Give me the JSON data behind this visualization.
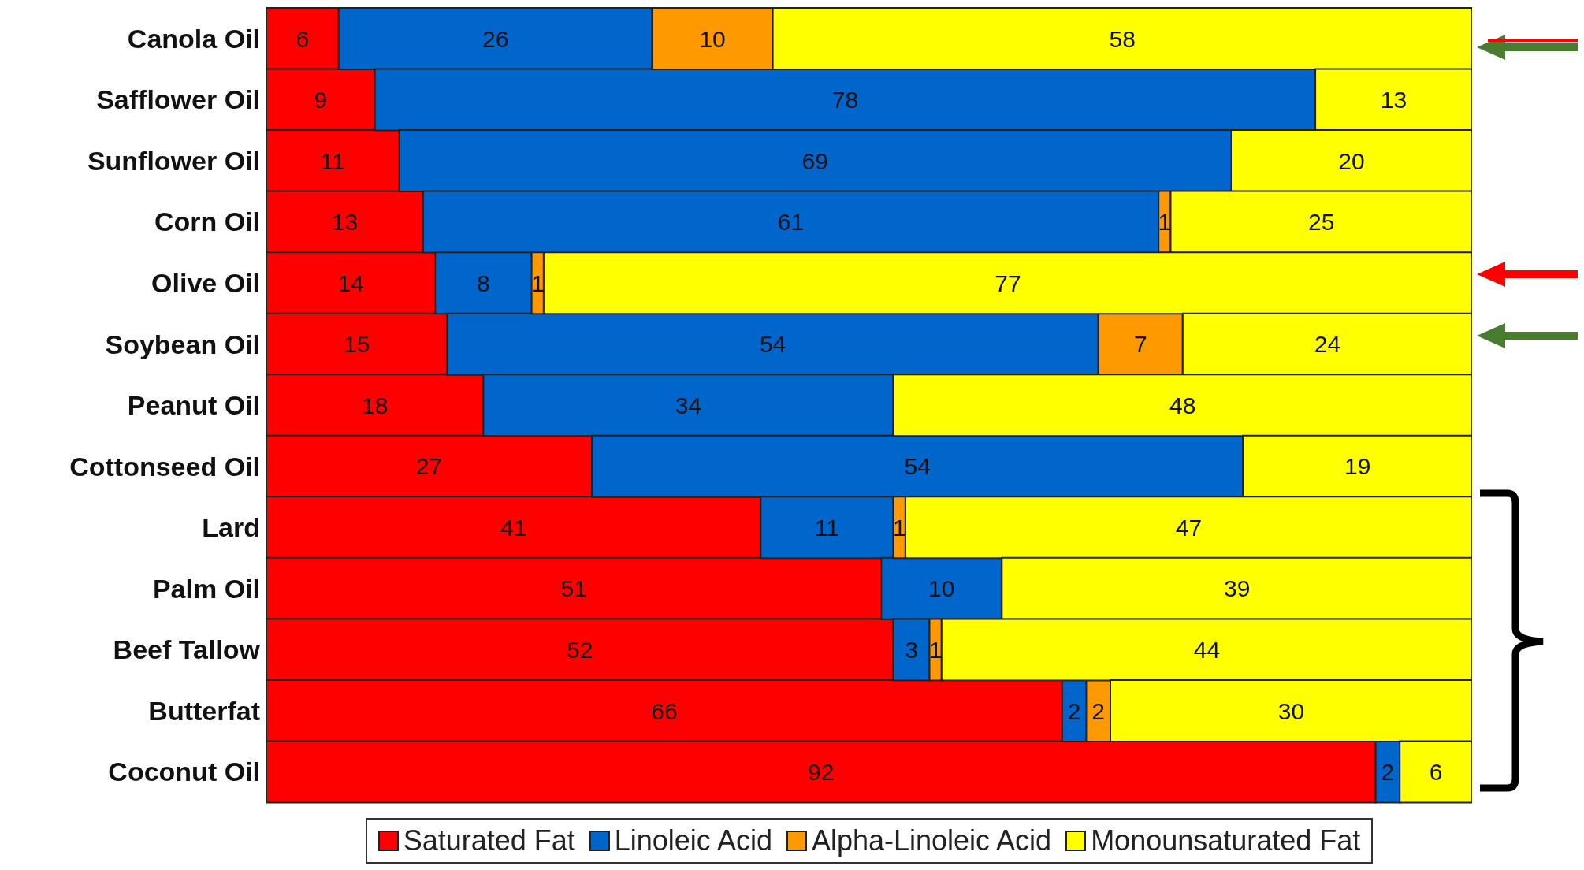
{
  "chart_data": {
    "type": "bar",
    "orientation": "horizontal",
    "stacked": true,
    "data_labels": true,
    "legend": "bottom",
    "grid": false,
    "tick_labels": "y",
    "xlim": [
      0,
      100
    ],
    "categories": [
      "Canola Oil",
      "Safflower Oil",
      "Sunflower Oil",
      "Corn Oil",
      "Olive Oil",
      "Soybean Oil",
      "Peanut Oil",
      "Cottonseed Oil",
      "Lard",
      "Palm Oil",
      "Beef Tallow",
      "Butterfat",
      "Coconut Oil"
    ],
    "series": [
      {
        "name": "Saturated Fat",
        "color": "#ff0000",
        "values": [
          6,
          9,
          11,
          13,
          14,
          15,
          18,
          27,
          41,
          51,
          52,
          66,
          92
        ]
      },
      {
        "name": "Linoleic Acid",
        "color": "#0066cc",
        "values": [
          26,
          78,
          69,
          61,
          8,
          54,
          34,
          54,
          11,
          10,
          3,
          2,
          2
        ]
      },
      {
        "name": "Alpha-Linoleic Acid",
        "color": "#ff9900",
        "values": [
          10,
          null,
          null,
          1,
          1,
          7,
          null,
          null,
          1,
          null,
          1,
          2,
          null
        ]
      },
      {
        "name": "Monounsaturated Fat",
        "color": "#ffff00",
        "values": [
          58,
          13,
          20,
          25,
          77,
          24,
          48,
          19,
          47,
          39,
          44,
          30,
          6
        ]
      }
    ]
  }
}
